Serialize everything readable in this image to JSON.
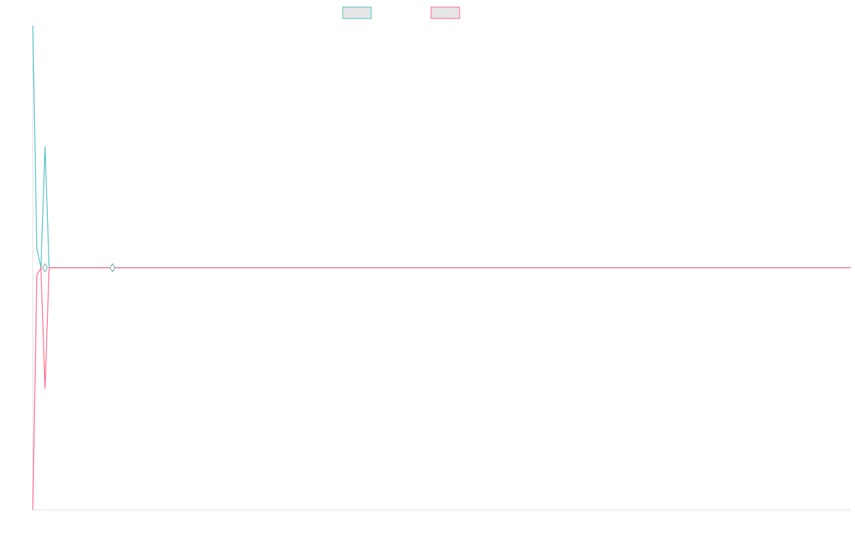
{
  "chart_data": {
    "type": "line",
    "title": "",
    "xlabel": "",
    "ylabel": "",
    "x": [
      0,
      1,
      2,
      3,
      4,
      5,
      6,
      7,
      8,
      9,
      10,
      11,
      12,
      13,
      14,
      15,
      16,
      17,
      18,
      19,
      20
    ],
    "ylim": [
      -1.0,
      1.0
    ],
    "xlim": [
      0,
      200
    ],
    "grid": false,
    "legend": "top-center",
    "series": [
      {
        "color": "#4BC0C0",
        "fill": "#E6E6E6",
        "values": [
          1.0,
          0.08,
          0.0,
          0.5,
          0.0,
          0.0,
          0.0,
          0.0,
          0.0,
          0.0,
          0.0,
          0.0,
          0.0,
          0.0,
          0.0,
          0.0,
          0.0,
          0.0,
          0.0,
          0.0,
          0.0
        ]
      },
      {
        "color": "#FF6384",
        "fill": "#E6E6E6",
        "values": [
          -1.0,
          -0.03,
          0.0,
          -0.5,
          0.0,
          0.0,
          0.0,
          0.0,
          0.0,
          0.0,
          0.0,
          0.0,
          0.0,
          0.0,
          0.0,
          0.0,
          0.0,
          0.0,
          0.0,
          0.0,
          0.0
        ]
      }
    ],
    "markers": [
      {
        "x": 3.0,
        "y": 0.0
      },
      {
        "x": 19.5,
        "y": 0.0
      }
    ],
    "axis_color": "#E0E0E0"
  }
}
